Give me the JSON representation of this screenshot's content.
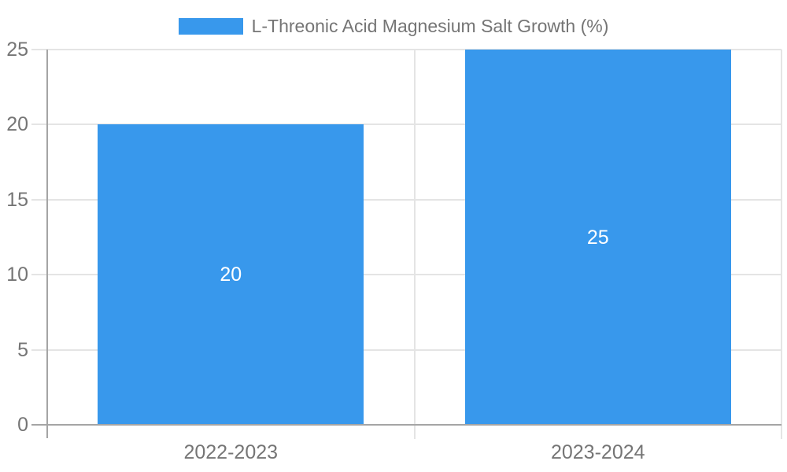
{
  "chart_data": {
    "type": "bar",
    "title": "",
    "categories": [
      "2022-2023",
      "2023-2024"
    ],
    "series": [
      {
        "name": "L-Threonic Acid Magnesium Salt Growth (%)",
        "values": [
          20,
          25
        ]
      }
    ],
    "data_labels": [
      "20",
      "25"
    ],
    "ylim": [
      0,
      25
    ],
    "yticks": [
      0,
      5,
      10,
      15,
      20,
      25
    ],
    "xlabel": "",
    "ylabel": "",
    "grid": true,
    "legend_position": "top-center"
  },
  "colors": {
    "bar": "#3898ec",
    "grid": "#e4e4e4",
    "axis": "#a5a5a5",
    "tick_text": "#757575",
    "legend_text": "#757575",
    "data_label_text": "#ffffff",
    "background": "#ffffff"
  }
}
